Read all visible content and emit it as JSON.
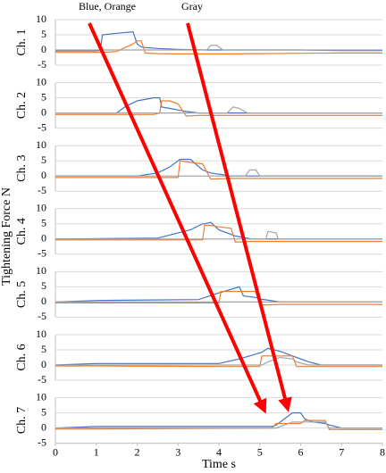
{
  "ylabel": "Tightening Force N",
  "annotations": [
    "Blue, Orange",
    "Gray"
  ],
  "chart_data": [
    {
      "type": "line",
      "ylabel": "Ch. 1",
      "xlim": [
        0,
        8
      ],
      "ylim": [
        -5,
        10
      ],
      "yticks": [
        -5,
        0,
        5,
        10
      ],
      "grid": true,
      "x": [
        0,
        1,
        1.1,
        1.15,
        1.5,
        1.9,
        2.0,
        2.1,
        2.2,
        2.5,
        3,
        3.7,
        3.8,
        3.95,
        4.1,
        5,
        6,
        7,
        8
      ],
      "series": [
        {
          "color": "#4472c4",
          "values": [
            -0.3,
            -0.3,
            -0.2,
            5,
            5.5,
            6,
            2,
            1,
            0.8,
            0.5,
            0.2,
            0,
            0,
            0,
            0,
            0,
            0,
            -0.2,
            -0.2
          ]
        },
        {
          "color": "#ed7d31",
          "values": [
            -0.8,
            -0.8,
            -0.8,
            -0.8,
            -0.5,
            2,
            3,
            3,
            -1,
            -1.2,
            -1.3,
            -1.3,
            -1.3,
            -1.3,
            -1.3,
            -1.2,
            -1.1,
            -1,
            -1
          ]
        },
        {
          "color": "#a5a5a5",
          "values": [
            0,
            0,
            0,
            0,
            0,
            0,
            0,
            0,
            0,
            0,
            0,
            0,
            1.5,
            1.5,
            0,
            0,
            0,
            0,
            0
          ]
        }
      ]
    },
    {
      "type": "line",
      "ylabel": "Ch. 2",
      "xlim": [
        0,
        8
      ],
      "ylim": [
        -5,
        10
      ],
      "yticks": [
        -5,
        0,
        5,
        10
      ],
      "grid": true,
      "x": [
        0,
        1.5,
        1.7,
        2.0,
        2.4,
        2.55,
        2.6,
        2.8,
        3.0,
        3.2,
        3.5,
        4.2,
        4.35,
        4.5,
        4.7,
        6,
        8
      ],
      "series": [
        {
          "color": "#4472c4",
          "values": [
            0,
            0,
            2,
            4,
            5,
            5,
            2,
            1.5,
            1,
            0.5,
            0,
            0,
            0,
            0,
            0,
            0,
            0
          ]
        },
        {
          "color": "#ed7d31",
          "values": [
            -0.5,
            -0.5,
            -0.5,
            -0.5,
            -0.5,
            0,
            4,
            4,
            3,
            -1,
            -0.8,
            -0.8,
            -0.8,
            -0.8,
            -0.8,
            -0.8,
            -0.8
          ]
        },
        {
          "color": "#a5a5a5",
          "values": [
            0,
            0,
            0,
            0,
            0,
            0,
            0,
            0,
            0,
            0,
            0,
            0,
            2,
            1.5,
            0,
            0,
            0
          ]
        }
      ]
    },
    {
      "type": "line",
      "ylabel": "Ch. 3",
      "xlim": [
        0,
        8
      ],
      "ylim": [
        -5,
        10
      ],
      "yticks": [
        -5,
        0,
        5,
        10
      ],
      "grid": true,
      "x": [
        0,
        2,
        2.5,
        2.8,
        3.0,
        3.05,
        3.3,
        3.6,
        3.8,
        4.3,
        4.65,
        4.75,
        4.9,
        5.0,
        6,
        8
      ],
      "series": [
        {
          "color": "#4472c4",
          "values": [
            0,
            0,
            1,
            3,
            5,
            5.5,
            5.5,
            2,
            1,
            0,
            0,
            0,
            0,
            0,
            0,
            0
          ]
        },
        {
          "color": "#ed7d31",
          "values": [
            -0.5,
            -0.5,
            -0.5,
            -0.5,
            -0.5,
            5,
            4.5,
            4,
            -1,
            -0.8,
            -0.8,
            -0.8,
            -0.8,
            -0.8,
            -0.8,
            -0.8
          ]
        },
        {
          "color": "#a5a5a5",
          "values": [
            0,
            0,
            0,
            0,
            0,
            0,
            0,
            0,
            0,
            0,
            0,
            2,
            2,
            0,
            0,
            0
          ]
        }
      ]
    },
    {
      "type": "line",
      "ylabel": "Ch. 4",
      "xlim": [
        0,
        8
      ],
      "ylim": [
        -5,
        10
      ],
      "yticks": [
        -5,
        0,
        5,
        10
      ],
      "grid": true,
      "x": [
        0,
        2.5,
        3.3,
        3.6,
        3.65,
        3.8,
        4.0,
        4.3,
        4.4,
        4.8,
        5.15,
        5.2,
        5.4,
        5.45,
        8
      ],
      "series": [
        {
          "color": "#4472c4",
          "values": [
            0,
            0.3,
            3,
            5,
            5,
            5.5,
            3,
            1.5,
            1,
            0,
            0,
            0,
            0,
            0,
            0
          ]
        },
        {
          "color": "#ed7d31",
          "values": [
            -0.3,
            -0.3,
            -0.3,
            -0.3,
            4.5,
            4.5,
            4,
            3.5,
            -1,
            -0.8,
            -0.8,
            -0.8,
            -0.8,
            -0.8,
            -0.8
          ]
        },
        {
          "color": "#a5a5a5",
          "values": [
            0,
            0,
            0,
            0,
            0,
            0,
            0,
            0,
            0,
            0,
            0,
            2.5,
            2,
            0,
            0
          ]
        }
      ]
    },
    {
      "type": "line",
      "ylabel": "Ch. 5",
      "xlim": [
        0,
        8
      ],
      "ylim": [
        -5,
        10
      ],
      "yticks": [
        -5,
        0,
        5,
        10
      ],
      "grid": true,
      "x": [
        0,
        1,
        3.5,
        4.0,
        4.05,
        4.5,
        4.6,
        4.9,
        5.0,
        5.5,
        8
      ],
      "series": [
        {
          "color": "#4472c4",
          "values": [
            0,
            0.5,
            0.8,
            3,
            3.2,
            5,
            2,
            1.5,
            1,
            0,
            0
          ]
        },
        {
          "color": "#ed7d31",
          "values": [
            -0.3,
            -0.3,
            -0.3,
            -0.3,
            3.5,
            3.5,
            3.5,
            3.5,
            -1,
            -0.8,
            -0.8
          ]
        },
        {
          "color": "#a5a5a5",
          "values": [
            0,
            0,
            0,
            0,
            0,
            0,
            0,
            0,
            0,
            0,
            0
          ]
        }
      ]
    },
    {
      "type": "line",
      "ylabel": "Ch. 6",
      "xlim": [
        0,
        8
      ],
      "ylim": [
        -5,
        10
      ],
      "yticks": [
        -5,
        0,
        5,
        10
      ],
      "grid": true,
      "x": [
        0,
        1,
        4,
        4.5,
        5.0,
        5.05,
        5.2,
        5.5,
        5.8,
        5.9,
        6.2,
        6.5,
        8
      ],
      "series": [
        {
          "color": "#4472c4",
          "values": [
            0,
            0.5,
            0.5,
            2,
            4,
            4.2,
            5.5,
            4.5,
            3,
            2.5,
            1,
            0,
            0
          ]
        },
        {
          "color": "#ed7d31",
          "values": [
            -0.3,
            -0.3,
            -0.5,
            -0.5,
            -0.5,
            3,
            3,
            3,
            3,
            -0.5,
            -0.5,
            -0.5,
            -0.5
          ]
        },
        {
          "color": "#a5a5a5",
          "values": [
            0,
            0,
            0,
            0,
            0,
            0,
            1,
            2.5,
            2,
            1,
            0,
            0,
            0
          ]
        }
      ]
    },
    {
      "type": "line",
      "ylabel": "Ch. 7",
      "xlabel": "Time s",
      "xlim": [
        0,
        8
      ],
      "xticks": [
        0,
        1,
        2,
        3,
        4,
        5,
        6,
        7,
        8
      ],
      "ylim": [
        -5,
        10
      ],
      "yticks": [
        -5,
        0,
        5,
        10
      ],
      "grid": true,
      "x": [
        0,
        1,
        5.3,
        5.4,
        5.8,
        6.0,
        6.1,
        6.3,
        6.6,
        6.7,
        7,
        8
      ],
      "series": [
        {
          "color": "#4472c4",
          "values": [
            0,
            0.5,
            0.5,
            1,
            5,
            5,
            3,
            2,
            1.5,
            1,
            0,
            0
          ]
        },
        {
          "color": "#ed7d31",
          "values": [
            -0.3,
            -0.3,
            0,
            1.5,
            1.5,
            1.5,
            2.5,
            2.5,
            2.5,
            -0.5,
            -0.5,
            -0.5
          ]
        },
        {
          "color": "#a5a5a5",
          "values": [
            0,
            0,
            0,
            0,
            2,
            2,
            2,
            2,
            2,
            0,
            0,
            0
          ]
        }
      ]
    }
  ]
}
